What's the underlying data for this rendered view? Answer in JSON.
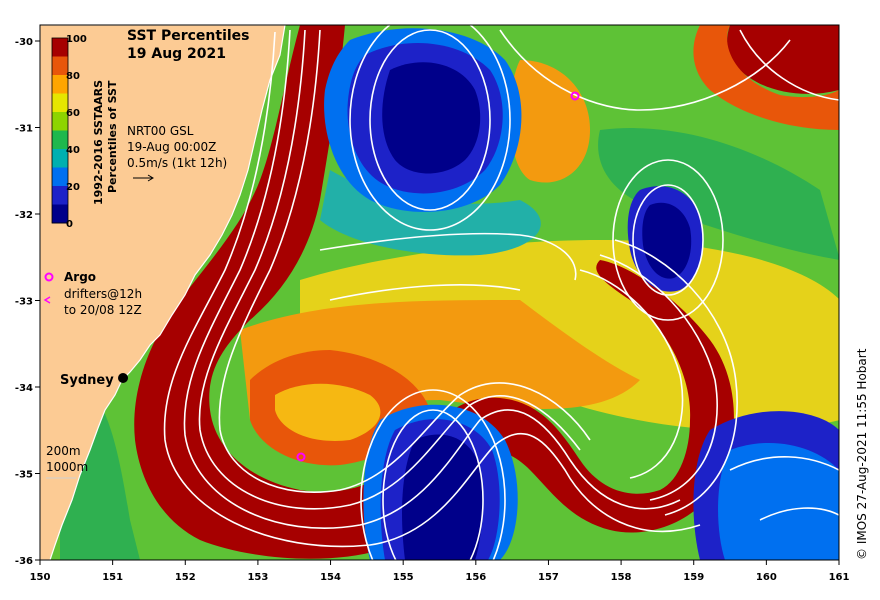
{
  "title": {
    "line1": "SST Percentiles",
    "line2": "19 Aug 2021"
  },
  "colorbar": {
    "label_line1": "1992-2016 SSTAARS",
    "label_line2": "Percentiles of SST",
    "ticks": [
      "100",
      "80",
      "60",
      "40",
      "20",
      "0"
    ],
    "colors": [
      "#a60000",
      "#e8560a",
      "#ffa500",
      "#e6e600",
      "#8ed400",
      "#1fb84d",
      "#00b0b0",
      "#0070f0",
      "#1d22c8",
      "#00008a"
    ]
  },
  "overlay": {
    "model": "NRT00 GSL",
    "time": "19-Aug 00:00Z",
    "scale": "0.5m/s (1kt 12h)"
  },
  "legend": {
    "argo": "Argo",
    "drifters_line1": "drifters@12h",
    "drifters_line2": "to 20/08 12Z"
  },
  "places": {
    "sydney": "Sydney"
  },
  "depth_contours": {
    "shallow": "200m",
    "deep": "1000m"
  },
  "x_ticks": [
    "150",
    "151",
    "152",
    "153",
    "154",
    "155",
    "156",
    "157",
    "158",
    "159",
    "160",
    "161"
  ],
  "y_ticks": [
    "-30",
    "-31",
    "-32",
    "-33",
    "-34",
    "-35",
    "-36"
  ],
  "credit": "© IMOS 27-Aug-2021 11:55 Hobart",
  "palette": {
    "land": "#fccb94",
    "coast": "#ffffff",
    "contour": "#ffffff",
    "argo": "#ff00ff"
  }
}
